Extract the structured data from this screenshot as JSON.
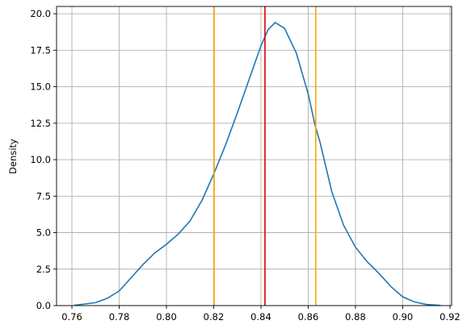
{
  "chart_data": {
    "type": "line",
    "ylabel": "Density",
    "x": [
      0.761,
      0.77,
      0.775,
      0.78,
      0.785,
      0.79,
      0.795,
      0.8,
      0.805,
      0.81,
      0.815,
      0.82,
      0.825,
      0.83,
      0.835,
      0.84,
      0.843,
      0.846,
      0.85,
      0.855,
      0.86,
      0.863,
      0.865,
      0.87,
      0.875,
      0.88,
      0.885,
      0.89,
      0.895,
      0.9,
      0.905,
      0.91,
      0.916
    ],
    "values": [
      0.02,
      0.2,
      0.5,
      1.0,
      1.9,
      2.8,
      3.6,
      4.2,
      4.9,
      5.8,
      7.2,
      9.0,
      11.0,
      13.2,
      15.5,
      17.8,
      18.9,
      19.4,
      19.0,
      17.3,
      14.5,
      12.3,
      11.2,
      7.8,
      5.5,
      4.0,
      3.0,
      2.2,
      1.3,
      0.6,
      0.25,
      0.08,
      0.01
    ],
    "color": "#1f77b4",
    "vlines": [
      {
        "x": 0.8202,
        "color": "#ffa500"
      },
      {
        "x": 0.8417,
        "color": "#e00000"
      },
      {
        "x": 0.8632,
        "color": "#ffa500"
      }
    ],
    "xlim": [
      0.7535,
      0.9207
    ],
    "xticks": [
      0.76,
      0.78,
      {
        "value": 0.8,
        "label": "0.80"
      },
      0.82,
      0.84,
      0.86,
      0.88,
      {
        "value": 0.9,
        "label": "0.90"
      },
      0.92
    ],
    "ylim": [
      0,
      20.5
    ],
    "yticks": [
      {
        "value": 0,
        "label": "0.0"
      },
      2.5,
      {
        "value": 5,
        "label": "5.0"
      },
      7.5,
      {
        "value": 10,
        "label": "10.0"
      },
      12.5,
      {
        "value": 15,
        "label": "15.0"
      },
      17.5,
      {
        "value": 20,
        "label": "20.0"
      }
    ],
    "grid": true
  }
}
